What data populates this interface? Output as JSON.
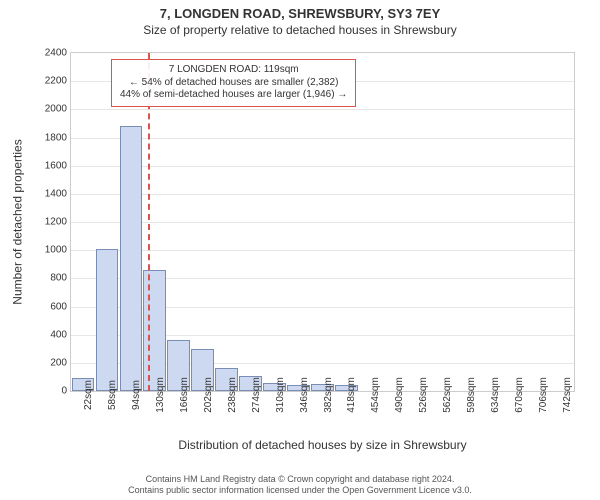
{
  "title_line1": "7, LONGDEN ROAD, SHREWSBURY, SY3 7EY",
  "title_line2": "Size of property relative to detached houses in Shrewsbury",
  "title_fontsize": 13,
  "subtitle_fontsize": 12,
  "chart": {
    "type": "histogram",
    "y_label": "Number of detached properties",
    "x_label": "Distribution of detached houses by size in Shrewsbury",
    "axis_label_fontsize": 12,
    "tick_fontsize": 10,
    "ylim": [
      0,
      2400
    ],
    "ytick_step": 200,
    "x_categories": [
      "22sqm",
      "58sqm",
      "94sqm",
      "130sqm",
      "166sqm",
      "202sqm",
      "238sqm",
      "274sqm",
      "310sqm",
      "346sqm",
      "382sqm",
      "418sqm",
      "454sqm",
      "490sqm",
      "526sqm",
      "562sqm",
      "598sqm",
      "634sqm",
      "670sqm",
      "706sqm",
      "742sqm"
    ],
    "values": [
      90,
      1010,
      1880,
      860,
      360,
      300,
      160,
      110,
      60,
      40,
      50,
      40,
      0,
      0,
      0,
      0,
      0,
      0,
      0,
      0,
      0
    ],
    "bar_fill": "#cdd9f0",
    "bar_border": "#7a8db5",
    "grid_color": "#e6e6e6",
    "background_color": "#ffffff",
    "axis_color": "#cccccc",
    "text_color": "#333333",
    "bar_width_ratio": 0.95
  },
  "marker": {
    "position_category_index": 2.7,
    "color": "#d9534f",
    "line_width": 2
  },
  "callout": {
    "lines": [
      "7 LONGDEN ROAD: 119sqm",
      "← 54% of detached houses are smaller (2,382)",
      "44% of semi-detached houses are larger (1,946) →"
    ],
    "border_color": "#d9534f",
    "fontsize": 10
  },
  "footer": {
    "line1": "Contains HM Land Registry data © Crown copyright and database right 2024.",
    "line2": "Contains public sector information licensed under the Open Government Licence v3.0.",
    "fontsize": 9,
    "color": "#555555"
  }
}
